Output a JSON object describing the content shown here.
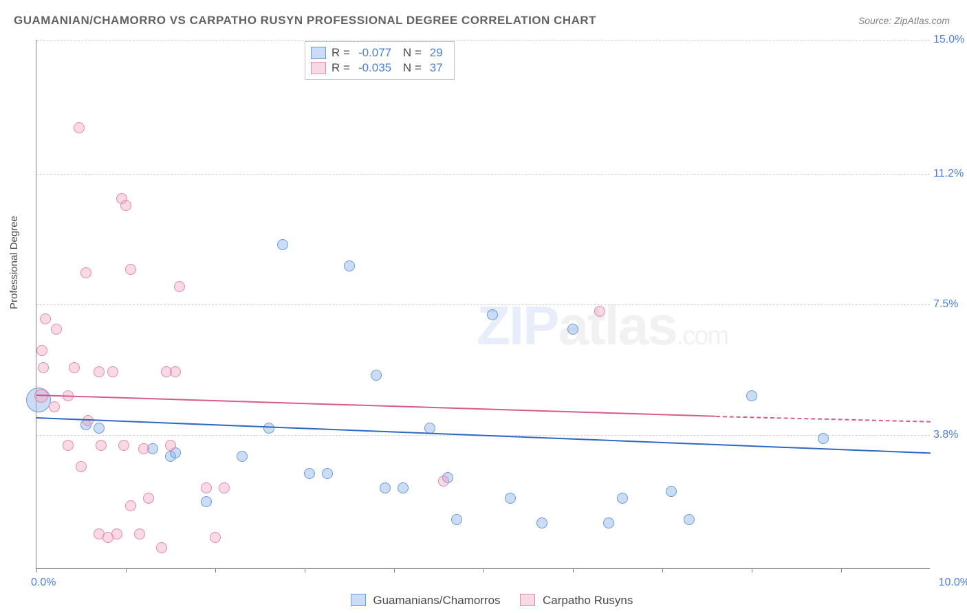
{
  "title": "GUAMANIAN/CHAMORRO VS CARPATHO RUSYN PROFESSIONAL DEGREE CORRELATION CHART",
  "source": "Source: ZipAtlas.com",
  "ylabel": "Professional Degree",
  "watermark_zip": "ZIP",
  "watermark_atlas": "atlas",
  "watermark_dotcom": ".com",
  "chart": {
    "type": "scatter",
    "background_color": "#ffffff",
    "grid_color": "#d0d0d0",
    "axis_color": "#808080",
    "value_color": "#4a7fd8",
    "text_color": "#4a4a4a",
    "xlim": [
      0,
      10
    ],
    "ylim": [
      0,
      15
    ],
    "x_label_min": "0.0%",
    "x_label_max": "10.0%",
    "x_ticks": [
      0,
      1,
      2,
      3,
      4,
      5,
      6,
      7,
      8,
      9
    ],
    "y_gridlines": [
      {
        "value": 3.8,
        "label": "3.8%"
      },
      {
        "value": 7.5,
        "label": "7.5%"
      },
      {
        "value": 11.2,
        "label": "11.2%"
      },
      {
        "value": 15.0,
        "label": "15.0%"
      }
    ],
    "series": [
      {
        "name": "Guamanians/Chamorros",
        "fill": "rgba(140,180,235,0.45)",
        "stroke": "#6a9ad8",
        "trend_color": "#2c68c4",
        "R": "-0.077",
        "N": "29",
        "trend": {
          "x1": 0.0,
          "y1": 4.3,
          "x2": 10.0,
          "y2": 3.3
        },
        "points": [
          {
            "x": 0.02,
            "y": 4.8,
            "r": 18
          },
          {
            "x": 0.55,
            "y": 4.1,
            "r": 8
          },
          {
            "x": 0.7,
            "y": 4.0,
            "r": 8
          },
          {
            "x": 1.3,
            "y": 3.4,
            "r": 8
          },
          {
            "x": 1.5,
            "y": 3.2,
            "r": 8
          },
          {
            "x": 1.55,
            "y": 3.3,
            "r": 8
          },
          {
            "x": 1.9,
            "y": 1.9,
            "r": 8
          },
          {
            "x": 2.3,
            "y": 3.2,
            "r": 8
          },
          {
            "x": 2.6,
            "y": 4.0,
            "r": 8
          },
          {
            "x": 2.75,
            "y": 9.2,
            "r": 8
          },
          {
            "x": 3.05,
            "y": 2.7,
            "r": 8
          },
          {
            "x": 3.25,
            "y": 2.7,
            "r": 8
          },
          {
            "x": 3.5,
            "y": 8.6,
            "r": 8
          },
          {
            "x": 3.8,
            "y": 5.5,
            "r": 8
          },
          {
            "x": 3.9,
            "y": 2.3,
            "r": 8
          },
          {
            "x": 4.1,
            "y": 2.3,
            "r": 8
          },
          {
            "x": 4.4,
            "y": 4.0,
            "r": 8
          },
          {
            "x": 4.6,
            "y": 2.6,
            "r": 8
          },
          {
            "x": 4.7,
            "y": 1.4,
            "r": 8
          },
          {
            "x": 5.1,
            "y": 7.2,
            "r": 8
          },
          {
            "x": 5.3,
            "y": 2.0,
            "r": 8
          },
          {
            "x": 5.65,
            "y": 1.3,
            "r": 8
          },
          {
            "x": 6.0,
            "y": 6.8,
            "r": 8
          },
          {
            "x": 6.4,
            "y": 1.3,
            "r": 8
          },
          {
            "x": 6.55,
            "y": 2.0,
            "r": 8
          },
          {
            "x": 7.1,
            "y": 2.2,
            "r": 8
          },
          {
            "x": 7.3,
            "y": 1.4,
            "r": 8
          },
          {
            "x": 8.0,
            "y": 4.9,
            "r": 8
          },
          {
            "x": 8.8,
            "y": 3.7,
            "r": 8
          }
        ]
      },
      {
        "name": "Carpatho Rusyns",
        "fill": "rgba(240,160,190,0.40)",
        "stroke": "#e38aa8",
        "trend_color": "#d85a8c",
        "R": "-0.035",
        "N": "37",
        "trend": {
          "x1": 0.0,
          "y1": 4.95,
          "x2": 7.6,
          "y2": 4.35,
          "x2_dash": 10.0,
          "y2_dash": 4.2
        },
        "points": [
          {
            "x": 0.05,
            "y": 4.9,
            "r": 10
          },
          {
            "x": 0.06,
            "y": 6.2,
            "r": 8
          },
          {
            "x": 0.08,
            "y": 5.7,
            "r": 8
          },
          {
            "x": 0.1,
            "y": 7.1,
            "r": 8
          },
          {
            "x": 0.2,
            "y": 4.6,
            "r": 8
          },
          {
            "x": 0.22,
            "y": 6.8,
            "r": 8
          },
          {
            "x": 0.35,
            "y": 4.9,
            "r": 8
          },
          {
            "x": 0.35,
            "y": 3.5,
            "r": 8
          },
          {
            "x": 0.42,
            "y": 5.7,
            "r": 8
          },
          {
            "x": 0.48,
            "y": 12.5,
            "r": 8
          },
          {
            "x": 0.5,
            "y": 2.9,
            "r": 8
          },
          {
            "x": 0.55,
            "y": 8.4,
            "r": 8
          },
          {
            "x": 0.58,
            "y": 4.2,
            "r": 8
          },
          {
            "x": 0.7,
            "y": 5.6,
            "r": 8
          },
          {
            "x": 0.7,
            "y": 1.0,
            "r": 8
          },
          {
            "x": 0.72,
            "y": 3.5,
            "r": 8
          },
          {
            "x": 0.8,
            "y": 0.9,
            "r": 8
          },
          {
            "x": 0.85,
            "y": 5.6,
            "r": 8
          },
          {
            "x": 0.9,
            "y": 1.0,
            "r": 8
          },
          {
            "x": 0.95,
            "y": 10.5,
            "r": 8
          },
          {
            "x": 0.98,
            "y": 3.5,
            "r": 8
          },
          {
            "x": 1.0,
            "y": 10.3,
            "r": 8
          },
          {
            "x": 1.05,
            "y": 8.5,
            "r": 8
          },
          {
            "x": 1.05,
            "y": 1.8,
            "r": 8
          },
          {
            "x": 1.15,
            "y": 1.0,
            "r": 8
          },
          {
            "x": 1.2,
            "y": 3.4,
            "r": 8
          },
          {
            "x": 1.25,
            "y": 2.0,
            "r": 8
          },
          {
            "x": 1.4,
            "y": 0.6,
            "r": 8
          },
          {
            "x": 1.45,
            "y": 5.6,
            "r": 8
          },
          {
            "x": 1.5,
            "y": 3.5,
            "r": 8
          },
          {
            "x": 1.55,
            "y": 5.6,
            "r": 8
          },
          {
            "x": 1.6,
            "y": 8.0,
            "r": 8
          },
          {
            "x": 1.9,
            "y": 2.3,
            "r": 8
          },
          {
            "x": 2.0,
            "y": 0.9,
            "r": 8
          },
          {
            "x": 2.1,
            "y": 2.3,
            "r": 8
          },
          {
            "x": 4.55,
            "y": 2.5,
            "r": 8
          },
          {
            "x": 6.3,
            "y": 7.3,
            "r": 8
          }
        ]
      }
    ]
  }
}
